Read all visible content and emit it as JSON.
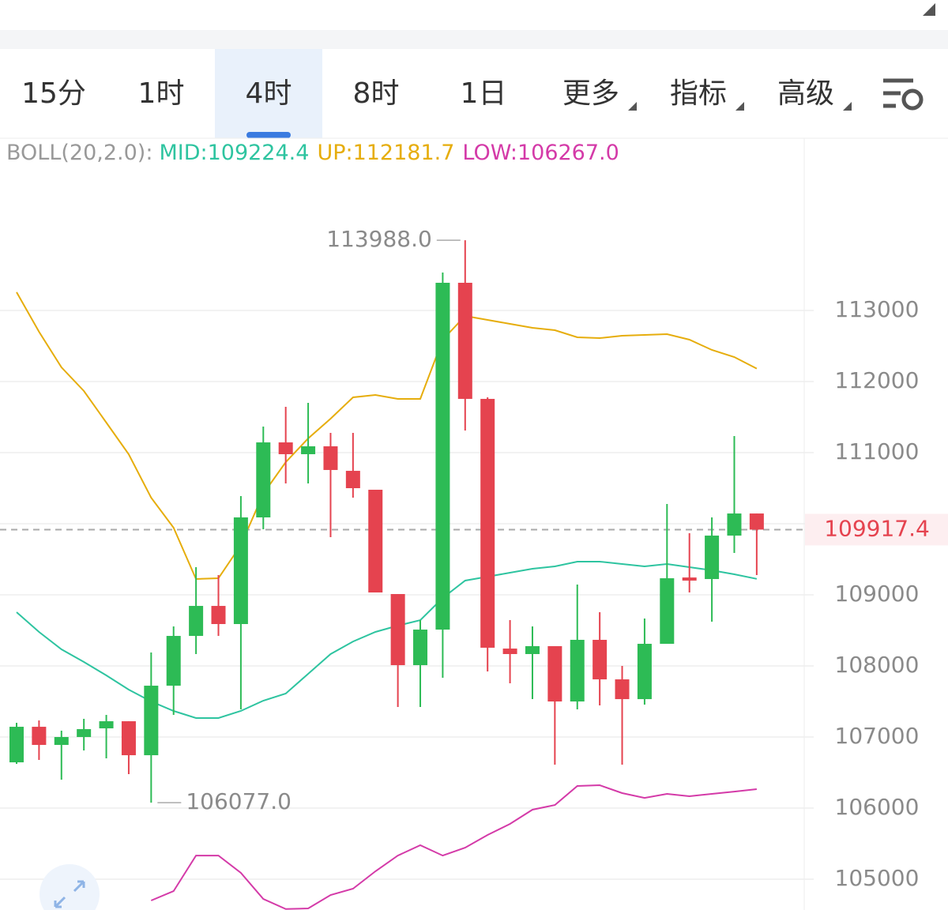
{
  "tabs": [
    "15分",
    "1时",
    "4时",
    "8时",
    "1日",
    "更多",
    "指标",
    "高级"
  ],
  "active_tab": 2,
  "chart_data": {
    "type": "candlestick",
    "ylim": [
      104567,
      115422
    ],
    "yticks": [
      105000,
      106000,
      107000,
      108000,
      109000,
      110000,
      111000,
      112000,
      113000
    ],
    "grid": true,
    "up_color": "#2dbb55",
    "down_color": "#e5434f",
    "open": [
      106644,
      107144,
      106889,
      107000,
      107122,
      107222,
      106744,
      107722,
      108422,
      108844,
      108589,
      110089,
      111144,
      110978,
      111089,
      110744,
      110478,
      109011,
      108011,
      108511,
      113389,
      111756,
      108244,
      108167,
      108278,
      107500,
      108367,
      107811,
      107533,
      108311,
      109244,
      109222,
      109833,
      110144
    ],
    "high": [
      107200,
      107233,
      107089,
      107256,
      107311,
      107222,
      108189,
      108556,
      109389,
      109278,
      110389,
      111367,
      111644,
      111700,
      111278,
      111278,
      110478,
      109011,
      108644,
      113533,
      113988,
      111778,
      108644,
      108556,
      108278,
      109144,
      108756,
      108000,
      108667,
      110278,
      109867,
      110089,
      111233,
      110144
    ],
    "low": [
      106622,
      106678,
      106400,
      106811,
      106700,
      106478,
      106077,
      107311,
      108167,
      108422,
      107389,
      109922,
      110567,
      110567,
      109811,
      110367,
      109033,
      107422,
      107422,
      107833,
      111311,
      107922,
      107756,
      107533,
      106611,
      107389,
      107444,
      106611,
      107456,
      108311,
      109033,
      108622,
      109589,
      109278
    ],
    "close": [
      107144,
      106889,
      107000,
      107111,
      107222,
      106744,
      107722,
      108422,
      108844,
      108589,
      110089,
      111144,
      110978,
      111089,
      110756,
      110500,
      109033,
      108011,
      108511,
      113389,
      111756,
      108256,
      108167,
      108278,
      107500,
      108367,
      107811,
      107533,
      108311,
      109233,
      109200,
      109833,
      110144,
      109917.4
    ],
    "high_annotation": {
      "value": 113988,
      "label": "113988.0"
    },
    "low_annotation": {
      "value": 106077,
      "label": "106077.0"
    },
    "current_price": 109917.4,
    "indicator": {
      "label": "BOLL(20,2.0):",
      "series": [
        {
          "name": "MID:",
          "last": 109224.4,
          "color": "#2ec4a0",
          "values": [
            108756,
            108478,
            108233,
            108056,
            107867,
            107667,
            107500,
            107367,
            107267,
            107267,
            107367,
            107511,
            107611,
            107889,
            108167,
            108344,
            108478,
            108567,
            108644,
            108956,
            109200,
            109256,
            109311,
            109367,
            109400,
            109467,
            109467,
            109433,
            109400,
            109433,
            109389,
            109344,
            109289,
            109224.4
          ]
        },
        {
          "name": "UP:",
          "last": 112181.7,
          "color": "#e6ad0c",
          "values": [
            113256,
            112700,
            112200,
            111867,
            111422,
            110978,
            110367,
            109944,
            109222,
            109233,
            109700,
            110422,
            110867,
            111200,
            111478,
            111778,
            111811,
            111756,
            111756,
            112589,
            112922,
            112867,
            112811,
            112756,
            112722,
            112622,
            112611,
            112644,
            112656,
            112667,
            112589,
            112444,
            112344,
            112181.7
          ]
        },
        {
          "name": "LOW:",
          "last": {
            "value": 106267,
            "label": "106267.0"
          },
          "color": "#d43aa8",
          "values": [
            null,
            null,
            null,
            null,
            null,
            null,
            104700,
            104833,
            105333,
            105333,
            105089,
            104722,
            104580,
            104589,
            104778,
            104867,
            105111,
            105333,
            105478,
            105333,
            105444,
            105622,
            105778,
            105978,
            106044,
            106311,
            106322,
            106211,
            106144,
            106200,
            106167,
            106200,
            106233,
            106267
          ]
        }
      ]
    }
  }
}
